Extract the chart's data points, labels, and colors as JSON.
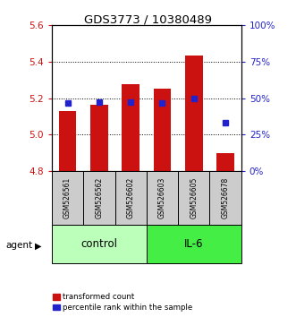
{
  "title": "GDS3773 / 10380489",
  "samples": [
    "GSM526561",
    "GSM526562",
    "GSM526602",
    "GSM526603",
    "GSM526605",
    "GSM526678"
  ],
  "red_values": [
    5.13,
    5.165,
    5.275,
    5.255,
    5.435,
    4.9
  ],
  "blue_values": [
    46.5,
    47.5,
    47.5,
    47.0,
    50.0,
    33.0
  ],
  "ymin": 4.8,
  "ymax": 5.6,
  "y2min": 0,
  "y2max": 100,
  "yticks": [
    4.8,
    5.0,
    5.2,
    5.4,
    5.6
  ],
  "y2ticks": [
    0,
    25,
    50,
    75,
    100
  ],
  "y2tick_labels": [
    "0%",
    "25%",
    "50%",
    "75%",
    "100%"
  ],
  "red_color": "#cc1111",
  "blue_color": "#2222cc",
  "bar_width": 0.55,
  "control_color": "#bbffbb",
  "il6_color": "#44ee44",
  "legend_red": "transformed count",
  "legend_blue": "percentile rank within the sample",
  "bar_base": 4.8
}
